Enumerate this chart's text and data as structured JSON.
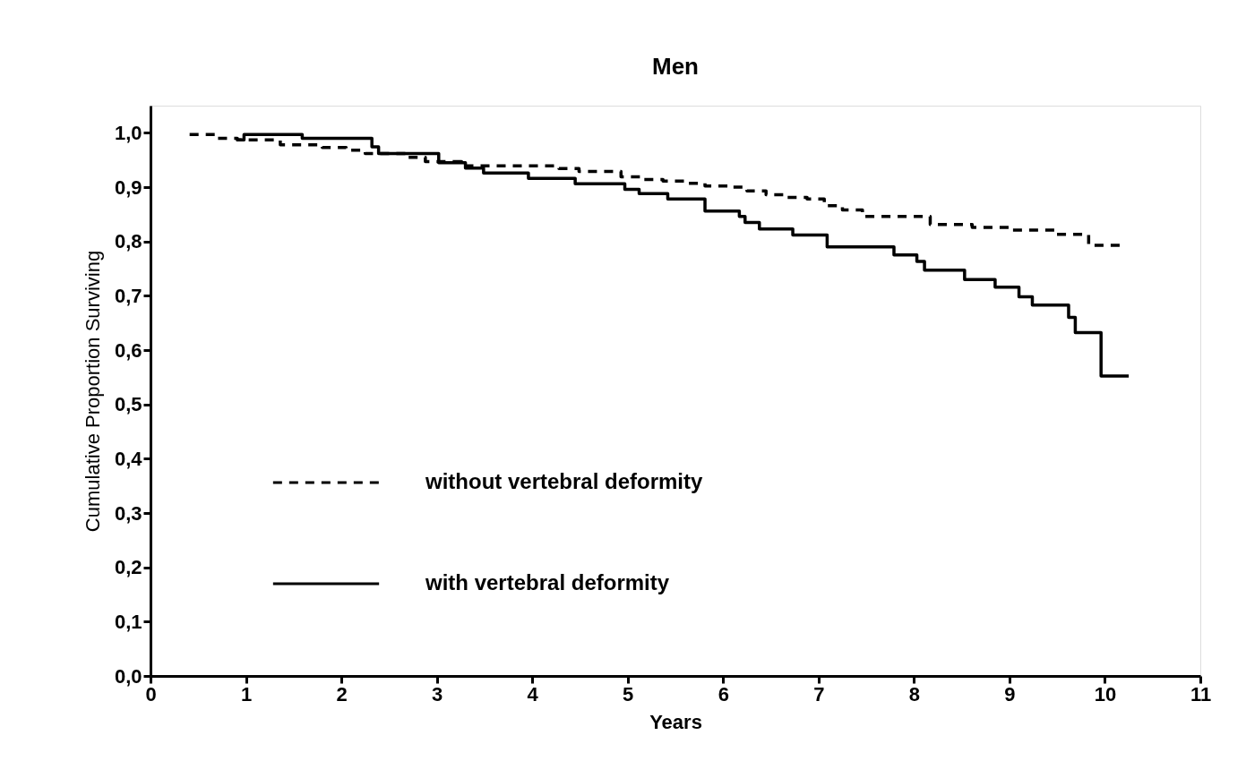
{
  "chart_data": {
    "type": "step",
    "title": "Men",
    "xlabel": "Years",
    "ylabel": "Cumulative Proportion Surviving",
    "xlim": [
      0,
      11
    ],
    "xticks": [
      0,
      1,
      2,
      3,
      4,
      5,
      6,
      7,
      8,
      9,
      10,
      11
    ],
    "ylim": [
      0,
      1.05
    ],
    "yticks": [
      {
        "value": 0,
        "label": "0,0"
      },
      {
        "value": 0.1,
        "label": "0,1"
      },
      {
        "value": 0.2,
        "label": "0,2"
      },
      {
        "value": 0.3,
        "label": "0,3"
      },
      {
        "value": 0.4,
        "label": "0,4"
      },
      {
        "value": 0.5,
        "label": "0,5"
      },
      {
        "value": 0.6,
        "label": "0,6"
      },
      {
        "value": 0.7,
        "label": "0,7"
      },
      {
        "value": 0.8,
        "label": "0,8"
      },
      {
        "value": 0.9,
        "label": "0,9"
      },
      {
        "value": 1.0,
        "label": "1,0"
      }
    ],
    "grid": false,
    "legend": "bottom left",
    "series": [
      {
        "name": "without vertebral deformity",
        "color": "#000000",
        "line_style": "dashed",
        "x": [
          0.41,
          0.68,
          0.91,
          1.36,
          1.8,
          2.05,
          2.25,
          2.7,
          2.88,
          3.26,
          4.28,
          4.49,
          4.93,
          5.15,
          5.37,
          5.59,
          5.81,
          6.06,
          6.25,
          6.45,
          6.67,
          6.88,
          7.06,
          7.25,
          7.46,
          8.17,
          8.61,
          9.03,
          9.48,
          9.83,
          10.16
        ],
        "values": [
          0.997,
          0.99,
          0.987,
          0.978,
          0.973,
          0.968,
          0.962,
          0.955,
          0.947,
          0.939,
          0.934,
          0.929,
          0.919,
          0.914,
          0.911,
          0.907,
          0.902,
          0.9,
          0.893,
          0.886,
          0.881,
          0.878,
          0.866,
          0.858,
          0.846,
          0.831,
          0.826,
          0.821,
          0.813,
          0.793,
          0.793
        ]
      },
      {
        "name": "with vertebral deformity",
        "color": "#000000",
        "line_style": "solid",
        "x": [
          0.9,
          0.98,
          1.59,
          2.32,
          2.39,
          3.02,
          3.3,
          3.49,
          3.96,
          4.45,
          4.97,
          5.12,
          5.42,
          5.81,
          6.17,
          6.23,
          6.38,
          6.73,
          7.09,
          7.79,
          8.03,
          8.11,
          8.53,
          8.85,
          9.1,
          9.24,
          9.62,
          9.69,
          9.96,
          10.25
        ],
        "values": [
          0.987,
          0.997,
          0.99,
          0.974,
          0.962,
          0.945,
          0.935,
          0.926,
          0.916,
          0.906,
          0.896,
          0.888,
          0.878,
          0.856,
          0.846,
          0.835,
          0.823,
          0.812,
          0.79,
          0.775,
          0.763,
          0.747,
          0.73,
          0.716,
          0.698,
          0.683,
          0.66,
          0.632,
          0.552,
          0.552
        ]
      }
    ]
  }
}
